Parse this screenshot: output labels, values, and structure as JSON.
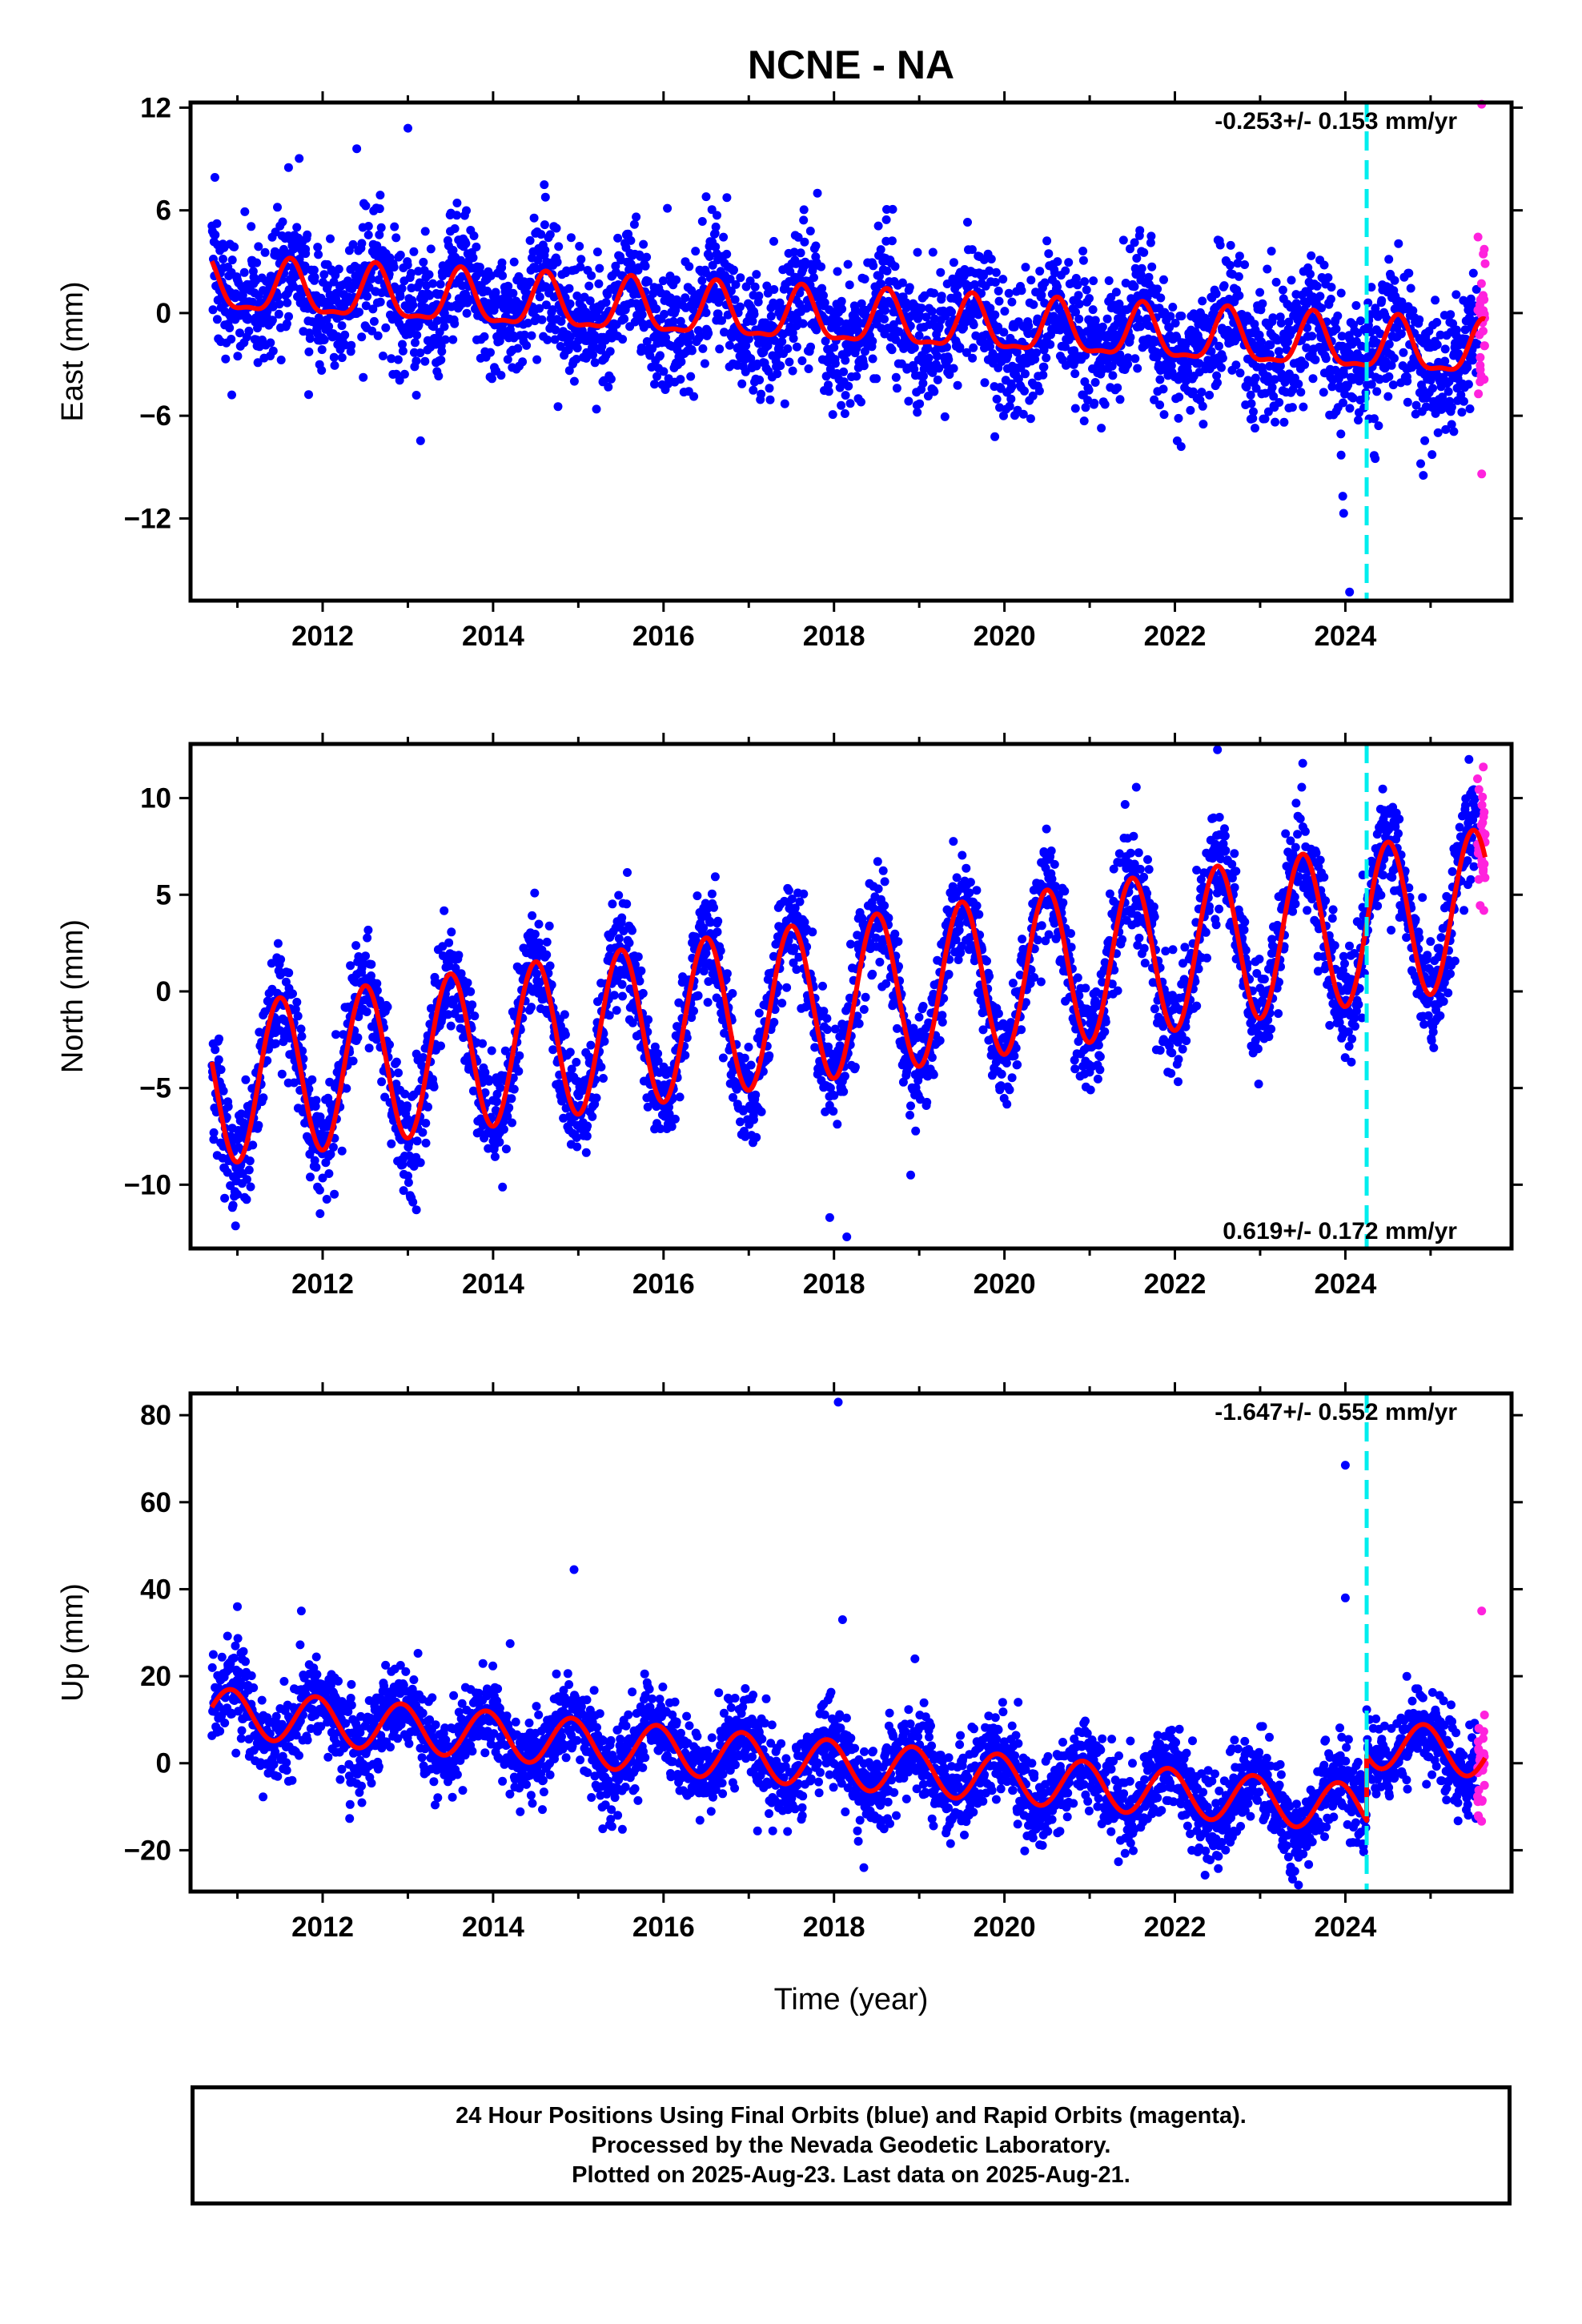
{
  "figure": {
    "title": "NCNE - NA",
    "xlabel": "Time (year)"
  },
  "caption": {
    "line1": "24 Hour Positions Using Final Orbits (blue) and Rapid Orbits (magenta).",
    "line2": "Processed by the Nevada Geodetic Laboratory.",
    "line3": "Plotted on 2025-Aug-23. Last data on 2025-Aug-21."
  },
  "colors": {
    "final_orbits": "#0000ff",
    "rapid_orbits": "#ff22dd",
    "model_fit": "#ff0000",
    "equipment_change": "#00eeee",
    "axes": "#000000"
  },
  "chart_data": [
    {
      "type": "scatter",
      "panel": "east",
      "ylabel": "East (mm)",
      "xlim": [
        2010.45,
        2025.95
      ],
      "ylim": [
        -16.8,
        12.3
      ],
      "xticks": [
        "2012",
        "2014",
        "2016",
        "2018",
        "2020",
        "2022",
        "2024"
      ],
      "yticks": [
        "12",
        "6",
        "0",
        "−6",
        "−12"
      ],
      "ytick_values": [
        12,
        6,
        0,
        -6,
        -12
      ],
      "rate_label": "-0.253+/- 0.153 mm/yr",
      "rate_position": "top-right",
      "equipment_change_year": 2024.25,
      "grid": false,
      "model": {
        "slope": -0.253,
        "annual_amplitude": 1.5,
        "annual_peak": 0.62,
        "semiannual_amplitude": 0.5,
        "offset_2018": -0.4
      },
      "scatter_noise_sd": 1.9,
      "series": [
        {
          "name": "Final Orbits (blue)",
          "x_range": [
            2010.7,
            2025.55
          ]
        },
        {
          "name": "Rapid Orbits (magenta)",
          "x_range": [
            2025.55,
            2025.64
          ]
        }
      ],
      "outliers": [
        {
          "x": 2011.6,
          "y": 8.5
        },
        {
          "x": 2012.4,
          "y": 9.6
        },
        {
          "x": 2013.0,
          "y": 10.8
        },
        {
          "x": 2013.1,
          "y": -4.8
        },
        {
          "x": 2014.6,
          "y": 7.5
        },
        {
          "x": 2016.5,
          "y": 6.8
        },
        {
          "x": 2023.95,
          "y": -8.3
        },
        {
          "x": 2023.97,
          "y": -10.7
        },
        {
          "x": 2023.98,
          "y": -11.7
        },
        {
          "x": 2024.05,
          "y": -16.3
        },
        {
          "x": 2024.35,
          "y": -8.5
        },
        {
          "x": 2025.6,
          "y": 12.2
        },
        {
          "x": 2025.6,
          "y": -9.4
        }
      ]
    },
    {
      "type": "scatter",
      "panel": "north",
      "ylabel": "North (mm)",
      "xlim": [
        2010.45,
        2025.95
      ],
      "ylim": [
        -13.3,
        12.8
      ],
      "xticks": [
        "2012",
        "2014",
        "2016",
        "2018",
        "2020",
        "2022",
        "2024"
      ],
      "yticks": [
        "10",
        "5",
        "0",
        "−5",
        "−10"
      ],
      "ytick_values": [
        10,
        5,
        0,
        -5,
        -10
      ],
      "rate_label": "0.619+/- 0.172 mm/yr",
      "rate_position": "bottom-right",
      "equipment_change_year": 2024.25,
      "grid": false,
      "model": {
        "slope": 0.619,
        "annual_amplitude": 4.1,
        "annual_peak": 0.5,
        "semiannual_amplitude": 0.0,
        "offset_2018": -0.4
      },
      "scatter_noise_sd": 1.4,
      "series": [
        {
          "name": "Final Orbits (blue)",
          "x_range": [
            2010.7,
            2025.55
          ]
        },
        {
          "name": "Rapid Orbits (magenta)",
          "x_range": [
            2025.55,
            2025.64
          ]
        }
      ],
      "outliers": [
        {
          "x": 2010.85,
          "y": -10.7
        },
        {
          "x": 2011.0,
          "y": -10.5
        },
        {
          "x": 2013.1,
          "y": -11.3
        },
        {
          "x": 2017.95,
          "y": -11.7
        },
        {
          "x": 2018.15,
          "y": -12.7
        },
        {
          "x": 2018.9,
          "y": -9.5
        },
        {
          "x": 2022.5,
          "y": 12.5
        },
        {
          "x": 2023.5,
          "y": 11.8
        },
        {
          "x": 2025.45,
          "y": 12.0
        }
      ]
    },
    {
      "type": "scatter",
      "panel": "up",
      "ylabel": "Up (mm)",
      "xlim": [
        2010.45,
        2025.95
      ],
      "ylim": [
        -29.5,
        85.0
      ],
      "xticks": [
        "2012",
        "2014",
        "2016",
        "2018",
        "2020",
        "2022",
        "2024"
      ],
      "yticks": [
        "80",
        "60",
        "40",
        "20",
        "0",
        "−20"
      ],
      "ytick_values": [
        80,
        60,
        40,
        20,
        0,
        -20
      ],
      "rate_label": "-1.647+/- 0.552 mm/yr",
      "rate_position": "top-right",
      "equipment_change_year": 2024.25,
      "grid": false,
      "model": {
        "slope": -1.647,
        "annual_amplitude": 5.5,
        "annual_peak": 0.92,
        "semiannual_amplitude": 0.0,
        "offset_2018": -0.2,
        "step_at_equipment_change": 15.0
      },
      "scatter_noise_sd": 5.0,
      "series": [
        {
          "name": "Final Orbits (blue)",
          "x_range": [
            2010.7,
            2025.55
          ]
        },
        {
          "name": "Rapid Orbits (magenta)",
          "x_range": [
            2025.55,
            2025.64
          ]
        }
      ],
      "outliers": [
        {
          "x": 2011.0,
          "y": 36.0
        },
        {
          "x": 2011.75,
          "y": 35.0
        },
        {
          "x": 2014.2,
          "y": 27.5
        },
        {
          "x": 2014.95,
          "y": 44.5
        },
        {
          "x": 2018.05,
          "y": 83.0
        },
        {
          "x": 2018.1,
          "y": 33.0
        },
        {
          "x": 2018.35,
          "y": -24.0
        },
        {
          "x": 2018.95,
          "y": 24.0
        },
        {
          "x": 2023.45,
          "y": -28.0
        },
        {
          "x": 2024.0,
          "y": 68.5
        },
        {
          "x": 2024.0,
          "y": 38.0
        },
        {
          "x": 2025.6,
          "y": 35.0
        }
      ]
    }
  ]
}
